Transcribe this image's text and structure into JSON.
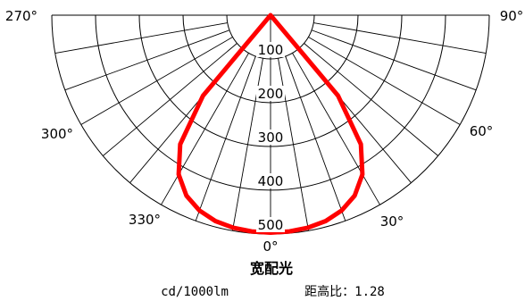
{
  "chart_data": {
    "type": "polar-intensity",
    "title": "宽配光",
    "unit_label": "cd/1000lm",
    "ratio_label": "距高比：1.28",
    "radial_ticks": [
      "100",
      "200",
      "300",
      "400",
      "500"
    ],
    "radial_tick_values": [
      100,
      200,
      300,
      400,
      500
    ],
    "rmax": 500,
    "angle_labels": [
      {
        "angle": 0,
        "text": "0°"
      },
      {
        "angle": 30,
        "text": "30°"
      },
      {
        "angle": 60,
        "text": "60°"
      },
      {
        "angle": 90,
        "text": "90°"
      },
      {
        "angle": 270,
        "text": "270°"
      },
      {
        "angle": 300,
        "text": "300°"
      },
      {
        "angle": 330,
        "text": "330°"
      }
    ],
    "grid_angle_step_deg": 10,
    "grid": true,
    "curve_color": "#ff0000",
    "series": [
      {
        "angles_deg": [
          -45,
          -40,
          -35,
          -30,
          -25,
          -20,
          -15,
          -10,
          -5,
          0,
          5,
          10,
          15,
          20,
          25,
          30,
          35,
          40,
          45
        ],
        "values": [
          0,
          240,
          360,
          420,
          455,
          475,
          487,
          493,
          496,
          497,
          496,
          493,
          487,
          475,
          455,
          420,
          360,
          240,
          0
        ]
      }
    ]
  }
}
